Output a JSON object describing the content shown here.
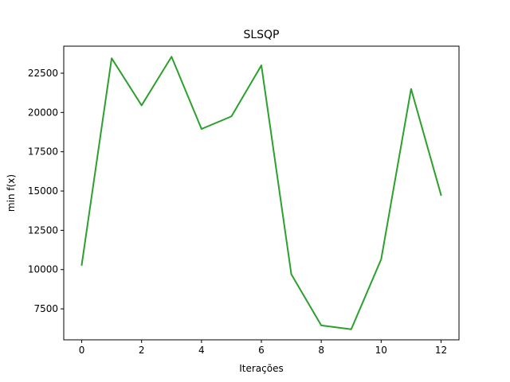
{
  "chart_data": {
    "type": "line",
    "title": "SLSQP",
    "xlabel": "Iterações",
    "ylabel": "min f(x)",
    "x": [
      0,
      1,
      2,
      3,
      4,
      5,
      6,
      7,
      8,
      9,
      10,
      11,
      12
    ],
    "series": [
      {
        "color": "#2ca02c",
        "values": [
          10300,
          23450,
          20450,
          23550,
          18950,
          19750,
          23000,
          9700,
          6450,
          6200,
          10650,
          21500,
          14750
        ]
      }
    ],
    "xlim": [
      -0.6,
      12.6
    ],
    "ylim": [
      5530,
      24220
    ],
    "xticks": [
      0,
      2,
      4,
      6,
      8,
      10,
      12
    ],
    "yticks": [
      7500,
      10000,
      12500,
      15000,
      17500,
      20000,
      22500
    ],
    "grid": false
  }
}
